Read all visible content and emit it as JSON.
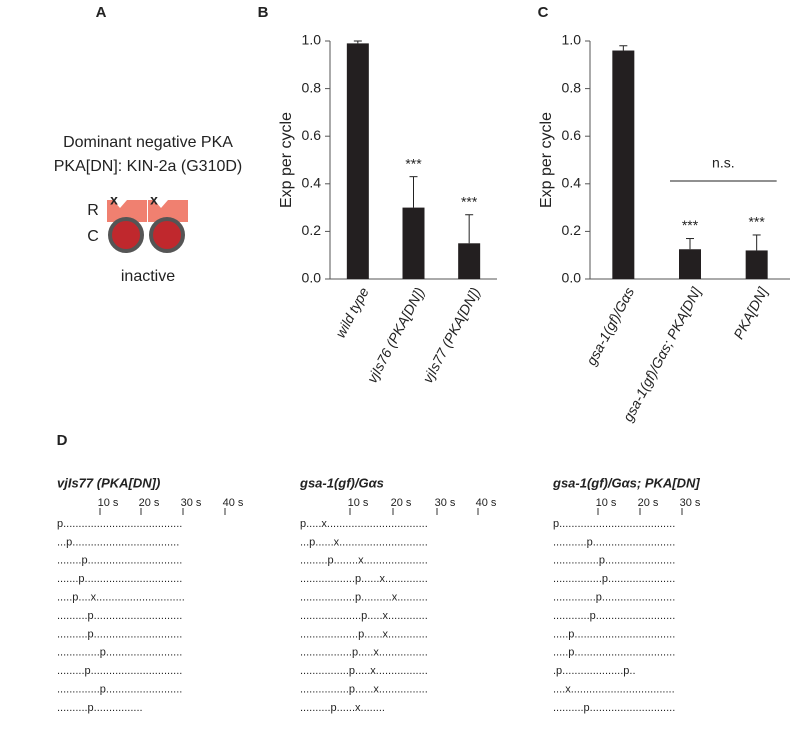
{
  "panel_labels": [
    "A",
    "B",
    "C",
    "D"
  ],
  "panel_a": {
    "title": "Dominant negative PKA",
    "subtitle": "PKA[DN]: KIN-2a (G310D)",
    "labels": [
      "R",
      "C"
    ],
    "marks": [
      "x",
      "x"
    ],
    "caption": "inactive"
  },
  "chart_data": [
    {
      "type": "bar",
      "y_label": "Exp per cycle",
      "color": "#231f20",
      "categories": [
        "wild type",
        "vjIs76 (PKA[DN])",
        "vjIs77 (PKA[DN])"
      ],
      "values": [
        0.99,
        0.3,
        0.15
      ],
      "errors": [
        0.01,
        0.13,
        0.12
      ],
      "annotations": [
        null,
        "***",
        "***"
      ],
      "ylim": [
        0,
        1
      ],
      "yticks": [
        {
          "value": 0,
          "label": "0.0"
        },
        0.2,
        0.4,
        0.6,
        0.8,
        {
          "value": 1,
          "label": "1.0"
        }
      ]
    },
    {
      "type": "bar",
      "y_label": "Exp per cycle",
      "color": "#231f20",
      "categories": [
        "gsa-1(gf)/Gαs",
        "gsa-1(gf)/Gαs; PKA[DN]",
        "PKA[DN]"
      ],
      "values": [
        0.96,
        0.125,
        0.12
      ],
      "errors": [
        0.02,
        0.045,
        0.065
      ],
      "annotations": [
        null,
        "***",
        "***"
      ],
      "comparison": "n.s.",
      "ylim": [
        0,
        1
      ],
      "yticks": [
        {
          "value": 0,
          "label": "0.0"
        },
        0.2,
        0.4,
        0.6,
        0.8,
        {
          "value": 1,
          "label": "1.0"
        }
      ]
    }
  ],
  "panel_d": {
    "columns": [
      {
        "title": "vjIs77 (PKA[DN])",
        "time_labels": [
          "10 s",
          "20 s",
          "30 s",
          "40 s"
        ],
        "lines": [
          "p.......................................",
          "...p...................................",
          "........p...............................",
          ".......p................................",
          ".....p....x.............................",
          "..........p.............................",
          "..........p.............................",
          "..............p.........................",
          ".........p..............................",
          "..............p.........................",
          "..........p................"
        ]
      },
      {
        "title": "gsa-1(gf)/Gαs",
        "time_labels": [
          "10 s",
          "20 s",
          "30 s",
          "40 s"
        ],
        "lines": [
          "p.....x.................................",
          "...p......x.............................",
          ".........p........x.....................",
          "..................p......x..............",
          "..................p..........x..........",
          "....................p.....x.............",
          "...................p......x.............",
          ".................p.....x................",
          "................p.....x.................",
          "................p......x................",
          "..........p......x........"
        ]
      },
      {
        "title": "gsa-1(gf)/Gαs; PKA[DN]",
        "time_labels": [
          "10 s",
          "20 s",
          "30 s"
        ],
        "lines": [
          "p......................................",
          "...........p...........................",
          "...............p.......................",
          "................p......................",
          "..............p........................",
          "............p..........................",
          ".....p.................................",
          ".....p.................................",
          ".p....................p..",
          "....x..................................",
          "..........p............................"
        ]
      }
    ]
  }
}
